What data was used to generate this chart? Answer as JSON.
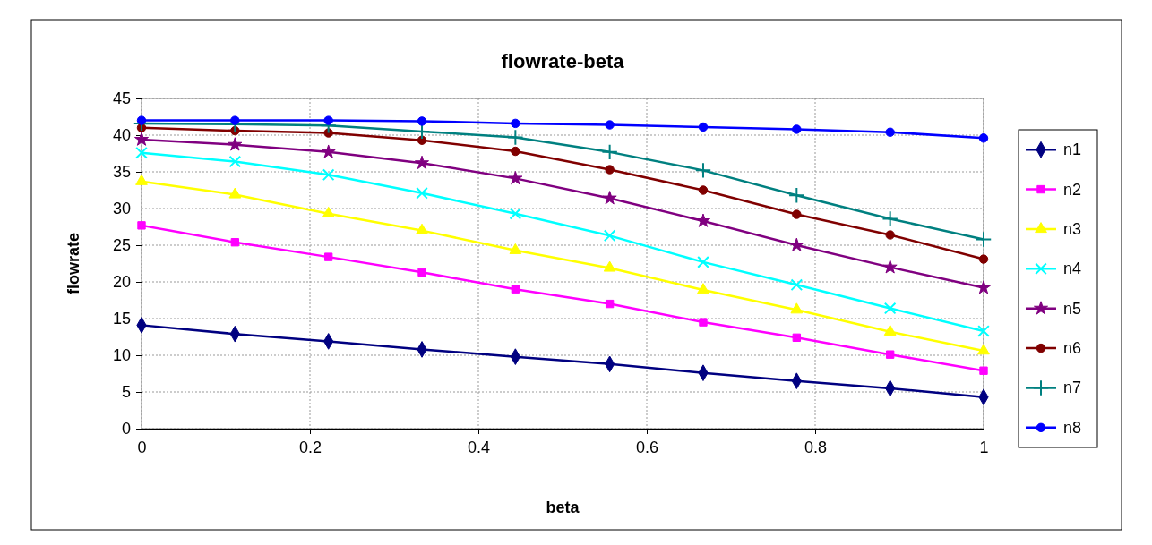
{
  "chart_data": {
    "type": "line",
    "title": "flowrate-beta",
    "xlabel": "beta",
    "ylabel": "flowrate",
    "x": [
      0,
      0.111,
      0.222,
      0.333,
      0.444,
      0.556,
      0.667,
      0.778,
      0.889,
      1
    ],
    "xlim": [
      0,
      1
    ],
    "xticks": [
      0,
      0.2,
      0.4,
      0.6,
      0.8,
      1
    ],
    "ylim": [
      0,
      45
    ],
    "yticks": [
      0,
      5,
      10,
      15,
      20,
      25,
      30,
      35,
      40,
      45
    ],
    "grid": true,
    "legend": "right",
    "series": [
      {
        "name": "n1",
        "color": "#000080",
        "marker": "diamond",
        "values": [
          14.1,
          12.9,
          11.9,
          10.8,
          9.8,
          8.8,
          7.6,
          6.5,
          5.5,
          4.3
        ]
      },
      {
        "name": "n2",
        "color": "#ff00ff",
        "marker": "square",
        "values": [
          27.7,
          25.4,
          23.4,
          21.3,
          19.0,
          17.0,
          14.5,
          12.4,
          10.1,
          7.9
        ]
      },
      {
        "name": "n3",
        "color": "#ffff00",
        "marker": "triangle",
        "values": [
          33.7,
          31.9,
          29.3,
          27.0,
          24.3,
          21.9,
          18.9,
          16.2,
          13.2,
          10.6
        ]
      },
      {
        "name": "n4",
        "color": "#00ffff",
        "marker": "cross",
        "values": [
          37.6,
          36.4,
          34.6,
          32.1,
          29.3,
          26.3,
          22.7,
          19.6,
          16.4,
          13.3
        ]
      },
      {
        "name": "n5",
        "color": "#800080",
        "marker": "star",
        "values": [
          39.4,
          38.7,
          37.7,
          36.2,
          34.1,
          31.4,
          28.3,
          25.0,
          22.0,
          19.2
        ]
      },
      {
        "name": "n6",
        "color": "#800000",
        "marker": "circle",
        "values": [
          41.0,
          40.6,
          40.3,
          39.3,
          37.8,
          35.3,
          32.5,
          29.2,
          26.4,
          23.1
        ]
      },
      {
        "name": "n7",
        "color": "#008080",
        "marker": "plus",
        "values": [
          41.6,
          41.5,
          41.3,
          40.5,
          39.7,
          37.7,
          35.2,
          31.8,
          28.6,
          25.8
        ]
      },
      {
        "name": "n8",
        "color": "#0000ff",
        "marker": "circle",
        "values": [
          42.0,
          42.0,
          42.0,
          41.9,
          41.6,
          41.4,
          41.1,
          40.8,
          40.4,
          39.6
        ]
      }
    ]
  }
}
